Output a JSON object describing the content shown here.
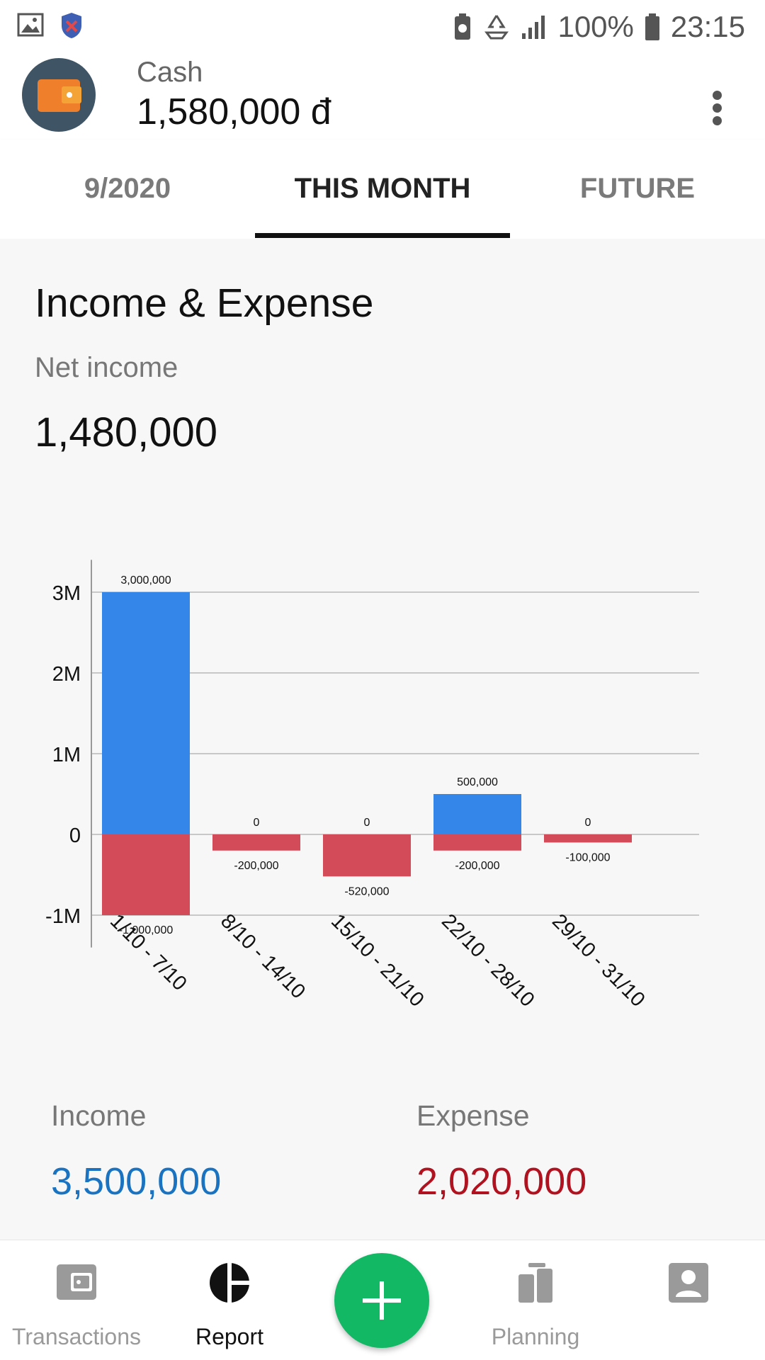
{
  "status_bar": {
    "battery": "100%",
    "time": "23:15"
  },
  "wallet": {
    "name": "Cash",
    "balance": "1,580,000 đ",
    "icon": "wallet-icon"
  },
  "tabs": [
    {
      "label": "9/2020"
    },
    {
      "label": "THIS MONTH"
    },
    {
      "label": "FUTURE"
    }
  ],
  "active_tab_index": 1,
  "report": {
    "title": "Income & Expense",
    "net_label": "Net income",
    "net_value": "1,480,000",
    "income_label": "Income",
    "income_value": "3,500,000",
    "expense_label": "Expense",
    "expense_value": "2,020,000"
  },
  "chart_data": {
    "type": "bar",
    "categories": [
      "1/10 - 7/10",
      "8/10 - 14/10",
      "15/10 - 21/10",
      "22/10 - 28/10",
      "29/10 - 31/10"
    ],
    "series": [
      {
        "values": [
          3000000,
          0,
          0,
          500000,
          0
        ],
        "color": "#3486e8"
      },
      {
        "values": [
          -1000000,
          -200000,
          -520000,
          -200000,
          -100000
        ],
        "color": "#d34a58"
      }
    ],
    "income_labels": [
      "3,000,000",
      "0",
      "0",
      "500,000",
      "0"
    ],
    "expense_labels": [
      "-1,000,000",
      "-200,000",
      "-520,000",
      "-200,000",
      "-100,000"
    ],
    "y_ticks": [
      3000000,
      2000000,
      1000000,
      0,
      -1000000
    ],
    "y_tick_labels": [
      "3M",
      "2M",
      "1M",
      "0",
      "-1M"
    ],
    "ylim": [
      -1400000,
      3400000
    ],
    "grid": true
  },
  "colors": {
    "income": "#1a73c1",
    "expense": "#b0121f",
    "fab": "#12b864"
  },
  "bottom_nav": [
    {
      "label": "Transactions",
      "icon": "wallet-nav-icon"
    },
    {
      "label": "Report",
      "icon": "pie-chart-icon"
    },
    {
      "label": "Planning",
      "icon": "planning-icon"
    },
    {
      "label": "",
      "icon": "account-icon"
    }
  ],
  "fab": {
    "icon": "plus-icon"
  }
}
